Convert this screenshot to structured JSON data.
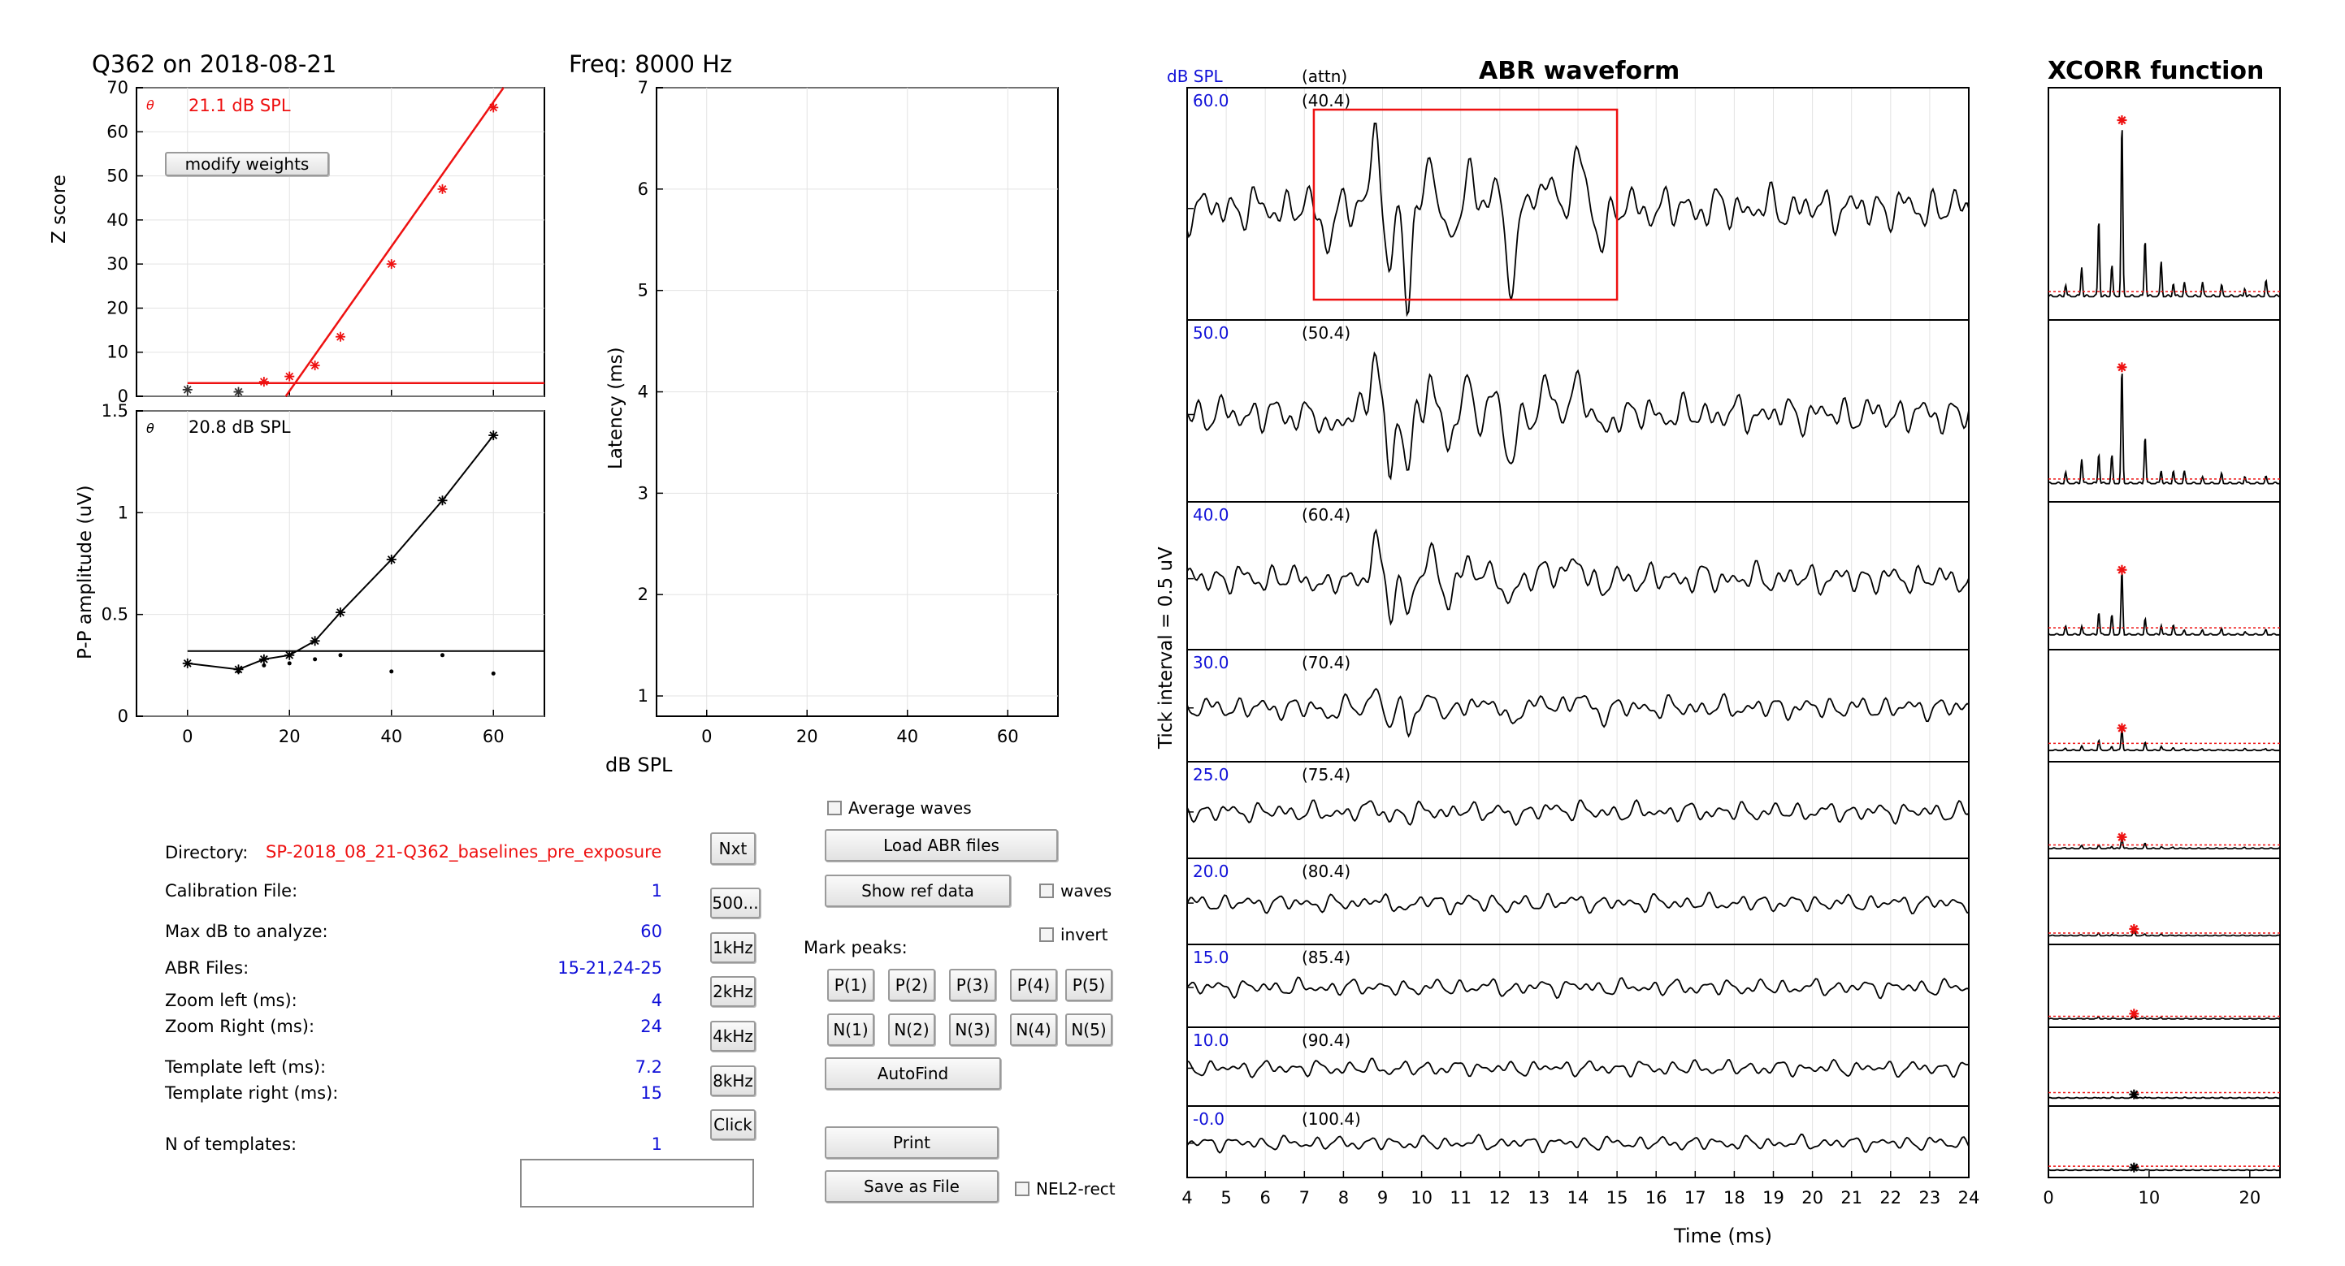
{
  "header": {
    "subject_title": "Q362 on 2018-08-21",
    "freq_title": "Freq: 8000 Hz",
    "abr_title": "ABR waveform",
    "xcorr_title": "XCORR function",
    "dbspl_col": "dB SPL",
    "attn_col": "(attn)"
  },
  "zscore_plot": {
    "threshold_label": "21.1 dB SPL",
    "theta": "θ",
    "ylabel": "Z score",
    "yticks": [
      "0",
      "10",
      "20",
      "30",
      "40",
      "50",
      "60",
      "70"
    ],
    "modify_button": "modify weights"
  },
  "pp_plot": {
    "threshold_label": "20.8 dB SPL",
    "theta": "θ",
    "ylabel": "P-P amplitude (uV)",
    "yticks": [
      "0",
      "0.5",
      "1",
      "1.5"
    ],
    "xticks": [
      "0",
      "20",
      "40",
      "60"
    ]
  },
  "latency_plot": {
    "ylabel": "Latency (ms)",
    "xlabel": "dB SPL",
    "yticks": [
      "1",
      "2",
      "3",
      "4",
      "5",
      "6",
      "7"
    ],
    "xticks": [
      "0",
      "20",
      "40",
      "60"
    ]
  },
  "abr_plot": {
    "ylabel": "Tick interval = 0.5 uV",
    "xlabel": "Time (ms)",
    "xticks": [
      "4",
      "5",
      "6",
      "7",
      "8",
      "9",
      "10",
      "11",
      "12",
      "13",
      "14",
      "15",
      "16",
      "17",
      "18",
      "19",
      "20",
      "21",
      "22",
      "23",
      "24"
    ],
    "rows": [
      {
        "db": "60.0",
        "attn": "(40.4)"
      },
      {
        "db": "50.0",
        "attn": "(50.4)"
      },
      {
        "db": "40.0",
        "attn": "(60.4)"
      },
      {
        "db": "30.0",
        "attn": "(70.4)"
      },
      {
        "db": "25.0",
        "attn": "(75.4)"
      },
      {
        "db": "20.0",
        "attn": "(80.4)"
      },
      {
        "db": "15.0",
        "attn": "(85.4)"
      },
      {
        "db": "10.0",
        "attn": "(90.4)"
      },
      {
        "db": "-0.0",
        "attn": "(100.4)"
      }
    ]
  },
  "xcorr_plot": {
    "xticks": [
      "0",
      "10",
      "20"
    ]
  },
  "params": {
    "directory_label": "Directory:",
    "directory_value": "SP-2018_08_21-Q362_baselines_pre_exposure",
    "calib_label": "Calibration File:",
    "calib_value": "1",
    "maxdb_label": "Max dB to analyze:",
    "maxdb_value": "60",
    "abrfiles_label": "ABR Files:",
    "abrfiles_value": "15-21,24-25",
    "zoomleft_label": "Zoom left (ms):",
    "zoomleft_value": "4",
    "zoomright_label": "Zoom Right (ms):",
    "zoomright_value": "24",
    "tleft_label": "Template left (ms):",
    "tleft_value": "7.2",
    "tright_label": "Template right (ms):",
    "tright_value": "15",
    "ntemp_label": "N of templates:",
    "ntemp_value": "1",
    "text_input": ""
  },
  "freq_buttons": [
    "Nxt",
    "500...",
    "1kHz",
    "2kHz",
    "4kHz",
    "8kHz",
    "Click"
  ],
  "controls": {
    "average_waves": "Average waves",
    "load_abr": "Load ABR files",
    "show_ref": "Show ref data",
    "waves": "waves",
    "invert": "invert",
    "mark_peaks": "Mark peaks:",
    "p_buttons": [
      "P(1)",
      "P(2)",
      "P(3)",
      "P(4)",
      "P(5)"
    ],
    "n_buttons": [
      "N(1)",
      "N(2)",
      "N(3)",
      "N(4)",
      "N(5)"
    ],
    "autofind": "AutoFind",
    "print": "Print",
    "save": "Save as File",
    "nel2": "NEL2-rect"
  },
  "chart_data": [
    {
      "type": "scatter",
      "name": "zscore",
      "x": [
        0,
        10,
        15,
        20,
        25,
        30,
        40,
        50,
        60
      ],
      "y": [
        1.5,
        1.0,
        3.3,
        4.5,
        7.0,
        13.5,
        30,
        47,
        65.5
      ],
      "xlim": [
        -10,
        70
      ],
      "ylim": [
        0,
        70
      ],
      "ylabel": "Z score",
      "threshold": 21.1,
      "criterion": 3,
      "line_color": "#ee1111"
    },
    {
      "type": "line",
      "name": "pp_amplitude",
      "x": [
        0,
        10,
        15,
        20,
        25,
        30,
        40,
        50,
        60
      ],
      "y": [
        0.26,
        0.23,
        0.28,
        0.3,
        0.37,
        0.51,
        0.77,
        1.06,
        1.38
      ],
      "noise": [
        0.26,
        0.22,
        0.25,
        0.26,
        0.28,
        0.3,
        0.22,
        0.3,
        0.21
      ],
      "xlim": [
        -10,
        70
      ],
      "ylim": [
        0,
        1.5
      ],
      "ylabel": "P-P amplitude (uV)",
      "threshold": 20.8,
      "baseline": 0.32
    },
    {
      "type": "scatter",
      "name": "latency",
      "x": [],
      "y": [],
      "xlim": [
        -10,
        70
      ],
      "ylim": [
        0.8,
        7
      ],
      "xlabel": "dB SPL",
      "ylabel": "Latency (ms)"
    },
    {
      "type": "line",
      "name": "abr_waveform",
      "xlim": [
        4,
        24
      ],
      "xlabel": "Time (ms)",
      "template_window_ms": [
        7.2,
        15
      ],
      "levels_db": [
        60,
        50,
        40,
        30,
        25,
        20,
        15,
        10,
        0
      ],
      "response_gain": [
        1.0,
        0.85,
        0.6,
        0.42,
        0.2,
        0.14,
        0.08,
        0.05,
        0.0
      ]
    },
    {
      "type": "line",
      "name": "xcorr",
      "xlim": [
        0,
        23
      ],
      "levels_db": [
        60,
        50,
        40,
        30,
        25,
        20,
        15,
        10,
        0
      ],
      "peak_lag": [
        7.3,
        7.3,
        7.3,
        7.3,
        7.3,
        8.5,
        8.5,
        8.5,
        8.5
      ],
      "peak_height": [
        0.95,
        0.8,
        0.55,
        0.25,
        0.15,
        0.1,
        0.08,
        0.06,
        0.05
      ],
      "threshold_level": [
        0.07,
        0.08,
        0.15,
        0.2,
        0.12,
        0.1,
        0.1,
        0.22,
        0.18
      ],
      "significant": [
        true,
        true,
        true,
        true,
        true,
        true,
        true,
        false,
        false
      ]
    }
  ]
}
